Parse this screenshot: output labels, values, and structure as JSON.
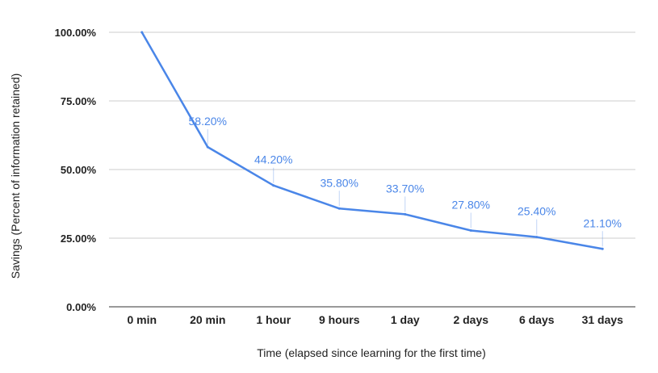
{
  "chart_data": {
    "type": "line",
    "title": "",
    "xlabel": "Time (elapsed since learning for the first time)",
    "ylabel": "Savings (Percent of information retained)",
    "categories": [
      "0 min",
      "20 min",
      "1 hour",
      "9 hours",
      "1 day",
      "2 days",
      "6 days",
      "31 days"
    ],
    "series": [
      {
        "values": [
          100.0,
          58.2,
          44.2,
          35.8,
          33.7,
          27.8,
          25.4,
          21.1
        ],
        "labels": [
          "",
          "58.20%",
          "44.20%",
          "35.80%",
          "33.70%",
          "27.80%",
          "25.40%",
          "21.10%"
        ]
      }
    ],
    "yticks": [
      "0.00%",
      "25.00%",
      "50.00%",
      "75.00%",
      "100.00%"
    ],
    "ylim": [
      0,
      100
    ],
    "grid": true,
    "legend": "none",
    "colors": {
      "line": "#4a86e8",
      "grid": "#cccccc",
      "text": "#222222"
    }
  }
}
